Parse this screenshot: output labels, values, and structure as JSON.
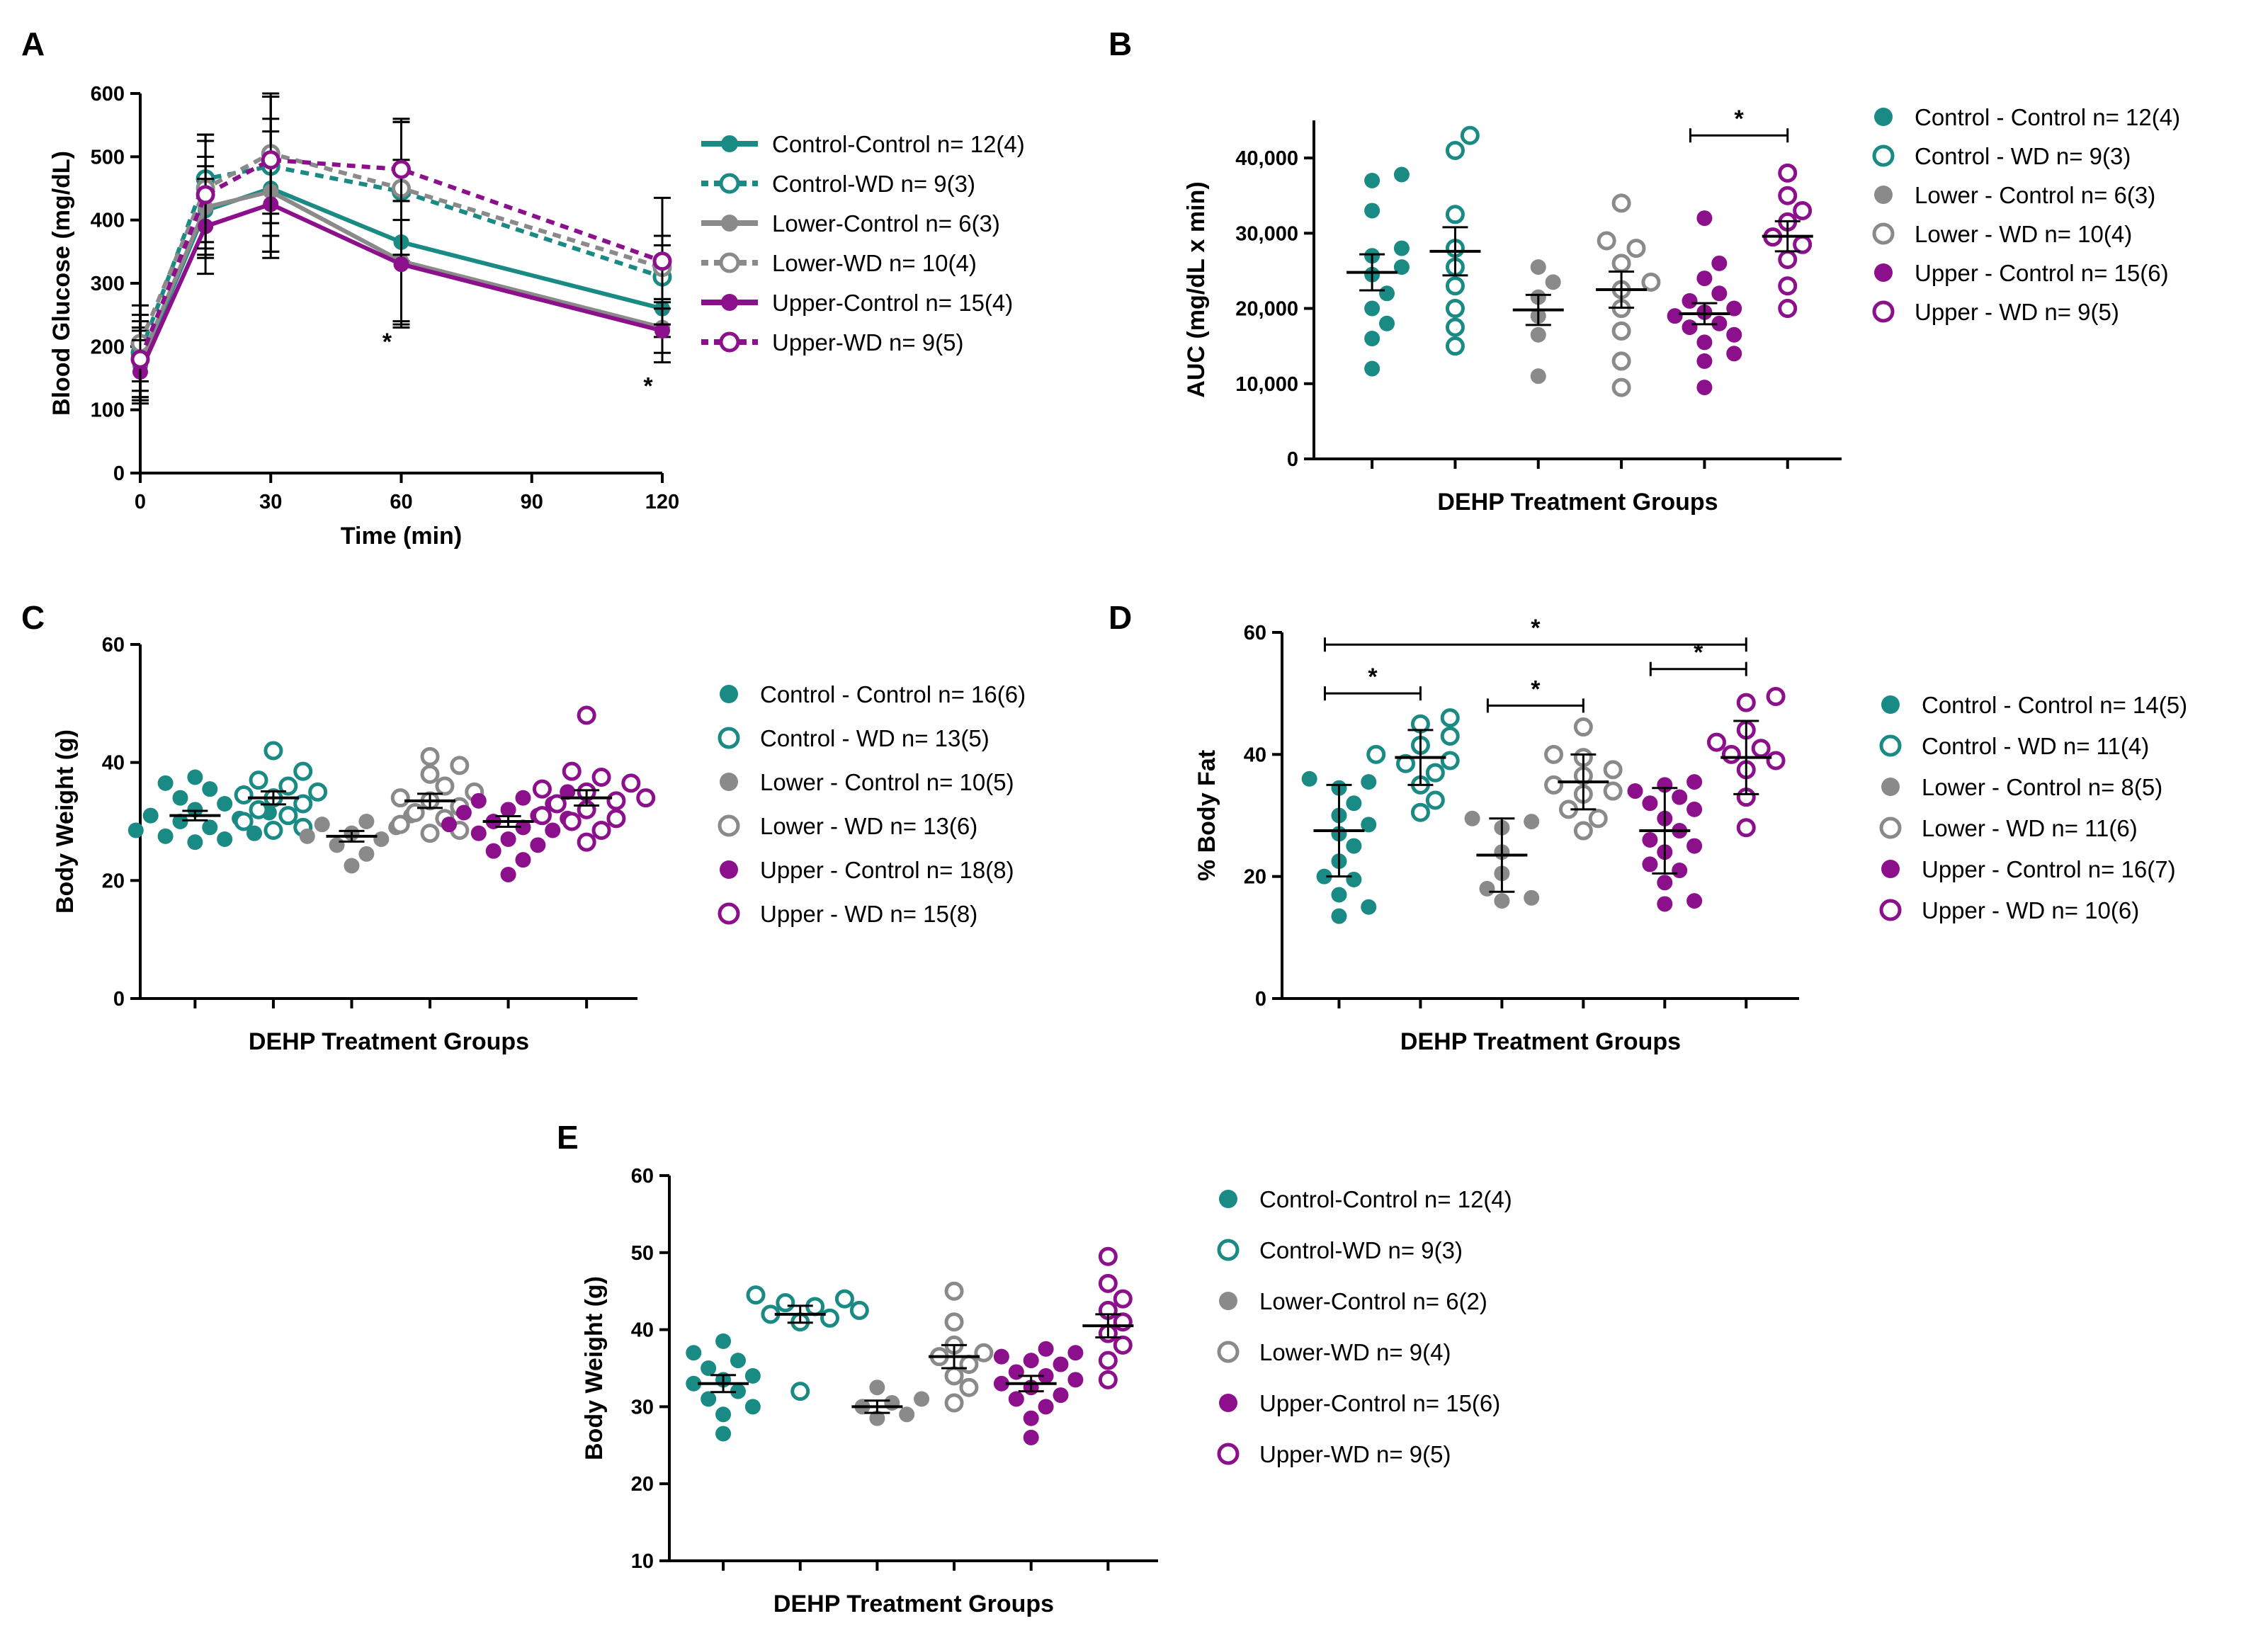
{
  "colors": {
    "control": "#1a8a84",
    "lower": "#8a8a8a",
    "upper": "#8c0f8c",
    "axis": "#000000"
  },
  "chart_data": [
    {
      "id": "A",
      "type": "line",
      "panel_label": "A",
      "xlabel": "Time (min)",
      "ylabel": "Blood Glucose (mg/dL)",
      "xlim": [
        0,
        120
      ],
      "ylim": [
        0,
        600
      ],
      "xticks": [
        0,
        30,
        60,
        90,
        120
      ],
      "yticks": [
        0,
        100,
        200,
        300,
        400,
        500,
        600
      ],
      "x": [
        0,
        15,
        30,
        60,
        120
      ],
      "series": [
        {
          "name": "Control-Control",
          "legend": "Control-Control n= 12(4)",
          "color": "control",
          "filled": true,
          "dashed": false,
          "values": [
            170,
            415,
            450,
            365,
            260
          ],
          "errors": [
            55,
            70,
            110,
            130,
            45
          ]
        },
        {
          "name": "Control-WD",
          "legend": "Control-WD n= 9(3)",
          "color": "control",
          "filled": false,
          "dashed": true,
          "values": [
            190,
            465,
            485,
            445,
            310
          ],
          "errors": [
            60,
            70,
            110,
            110,
            50
          ]
        },
        {
          "name": "Lower-Control",
          "legend": "Lower-Control n= 6(3)",
          "color": "lower",
          "filled": true,
          "dashed": false,
          "values": [
            175,
            420,
            445,
            335,
            230
          ],
          "errors": [
            55,
            80,
            95,
            95,
            40
          ]
        },
        {
          "name": "Lower-WD",
          "legend": "Lower-WD n= 10(4)",
          "color": "lower",
          "filled": false,
          "dashed": true,
          "values": [
            205,
            450,
            505,
            450,
            325
          ],
          "errors": [
            60,
            85,
            95,
            105,
            50
          ]
        },
        {
          "name": "Upper-Control",
          "legend": "Upper-Control n= 15(4)",
          "color": "upper",
          "filled": true,
          "dashed": false,
          "values": [
            160,
            390,
            425,
            330,
            225
          ],
          "errors": [
            50,
            75,
            75,
            100,
            50
          ]
        },
        {
          "name": "Upper-WD",
          "legend": "Upper-WD n= 9(5)",
          "color": "upper",
          "filled": false,
          "dashed": true,
          "values": [
            180,
            440,
            495,
            480,
            335
          ],
          "errors": [
            60,
            85,
            100,
            80,
            100
          ]
        }
      ],
      "annotations": [
        {
          "text": "*",
          "x": 60,
          "y": 195
        },
        {
          "text": "*",
          "x": 120,
          "y": 125
        }
      ]
    },
    {
      "id": "B",
      "type": "scatter",
      "panel_label": "B",
      "xlabel": "DEHP Treatment Groups",
      "ylabel": "AUC (mg/dL x min)",
      "ylim": [
        0,
        45000
      ],
      "yticks": [
        0,
        10000,
        20000,
        30000,
        40000
      ],
      "ytick_labels": [
        "0",
        "10,000",
        "20,000",
        "30,000",
        "40,000"
      ],
      "groups": [
        {
          "name": "Control - Control",
          "legend": "Control - Control n= 12(4)",
          "color": "control",
          "filled": true,
          "mean": 24800,
          "sem": 2400,
          "values": [
            37000,
            37800,
            33000,
            28000,
            27000,
            25500,
            24500,
            22000,
            20000,
            18000,
            16000,
            12000
          ]
        },
        {
          "name": "Control - WD",
          "legend": "Control - WD n= 9(3)",
          "color": "control",
          "filled": false,
          "mean": 27600,
          "sem": 3200,
          "values": [
            43000,
            41000,
            32500,
            28000,
            25500,
            23000,
            20000,
            15000,
            17500
          ]
        },
        {
          "name": "Lower - Control",
          "legend": "Lower - Control n= 6(3)",
          "color": "lower",
          "filled": true,
          "mean": 19800,
          "sem": 2000,
          "values": [
            25500,
            23500,
            21500,
            19000,
            16500,
            11000
          ]
        },
        {
          "name": "Lower - WD",
          "legend": "Lower - WD n= 10(4)",
          "color": "lower",
          "filled": false,
          "mean": 22500,
          "sem": 2400,
          "values": [
            34000,
            29000,
            28000,
            26000,
            23500,
            22500,
            20000,
            17000,
            13000,
            9500
          ]
        },
        {
          "name": "Upper - Control",
          "legend": "Upper - Control n= 15(6)",
          "color": "upper",
          "filled": true,
          "mean": 19300,
          "sem": 1400,
          "values": [
            32000,
            26000,
            24000,
            22000,
            21000,
            20000,
            19500,
            19000,
            18000,
            17500,
            16500,
            15500,
            14000,
            13000,
            9500
          ]
        },
        {
          "name": "Upper - WD",
          "legend": "Upper - WD n= 9(5)",
          "color": "upper",
          "filled": false,
          "mean": 29600,
          "sem": 2000,
          "values": [
            38000,
            35000,
            33000,
            31500,
            29500,
            28500,
            26500,
            23000,
            20000
          ]
        }
      ],
      "comparisons": [
        {
          "from": 4,
          "to": 5,
          "y": 43000,
          "text": "*"
        }
      ]
    },
    {
      "id": "C",
      "type": "scatter",
      "panel_label": "C",
      "xlabel": "DEHP Treatment Groups",
      "ylabel": "Body Weight (g)",
      "ylim": [
        0,
        60
      ],
      "yticks": [
        0,
        20,
        40,
        60
      ],
      "ytick_labels": [
        "0",
        "20",
        "40",
        "60"
      ],
      "groups": [
        {
          "name": "Control - Control",
          "legend": "Control - Control n= 16(6)",
          "color": "control",
          "filled": true,
          "mean": 31,
          "sem": 0.8,
          "values": [
            37.5,
            36.5,
            35.5,
            34,
            33,
            32,
            31.5,
            31,
            30.5,
            30,
            29,
            28.5,
            28,
            27.5,
            27,
            26.5
          ]
        },
        {
          "name": "Control - WD",
          "legend": "Control - WD n= 13(5)",
          "color": "control",
          "filled": false,
          "mean": 34,
          "sem": 1.1,
          "values": [
            42,
            38.5,
            37,
            36,
            35,
            34.5,
            34,
            33,
            32,
            31,
            30,
            29,
            28.5
          ]
        },
        {
          "name": "Lower - Control",
          "legend": "Lower - Control n= 10(5)",
          "color": "lower",
          "filled": true,
          "mean": 27.5,
          "sem": 0.9,
          "values": [
            31,
            30,
            29.5,
            29,
            28,
            27.5,
            27,
            26,
            24.5,
            22.5
          ]
        },
        {
          "name": "Lower - WD",
          "legend": "Lower - WD n= 13(6)",
          "color": "lower",
          "filled": false,
          "mean": 33.5,
          "sem": 1.2,
          "values": [
            41,
            39.5,
            38,
            36,
            35,
            34,
            33.5,
            32.5,
            31.5,
            30.5,
            29.5,
            28.5,
            28
          ]
        },
        {
          "name": "Upper - Control",
          "legend": "Upper - Control n= 18(8)",
          "color": "upper",
          "filled": true,
          "mean": 30,
          "sem": 0.9,
          "values": [
            35,
            34,
            33.5,
            33,
            32,
            31.5,
            31,
            30.5,
            30,
            29.5,
            29,
            28.5,
            28,
            27,
            26,
            25,
            23.5,
            21
          ]
        },
        {
          "name": "Upper - WD",
          "legend": "Upper - WD n= 15(8)",
          "color": "upper",
          "filled": false,
          "mean": 34,
          "sem": 1.3,
          "values": [
            48,
            38.5,
            37.5,
            36.5,
            35.5,
            35,
            34,
            33.5,
            33,
            32,
            31,
            30.5,
            30,
            28.5,
            26.5
          ]
        }
      ]
    },
    {
      "id": "D",
      "type": "scatter",
      "panel_label": "D",
      "xlabel": "DEHP Treatment Groups",
      "ylabel": "% Body Fat",
      "ylim": [
        0,
        60
      ],
      "yticks": [
        0,
        20,
        40,
        60
      ],
      "ytick_labels": [
        "0",
        "20",
        "40",
        "60"
      ],
      "groups": [
        {
          "name": "Control - Control",
          "legend": "Control - Control n= 14(5)",
          "color": "control",
          "filled": true,
          "mean": 27.5,
          "sem": 7.5,
          "values": [
            36,
            35.5,
            34.5,
            32,
            30,
            28.5,
            27,
            25,
            22.5,
            20,
            19.5,
            17,
            15,
            13.5
          ]
        },
        {
          "name": "Control - WD",
          "legend": "Control - WD  n= 11(4)",
          "color": "control",
          "filled": false,
          "mean": 39.5,
          "sem": 4.5,
          "values": [
            46,
            45,
            43,
            41.5,
            40,
            39,
            38.5,
            37,
            35,
            32.5,
            30.5
          ]
        },
        {
          "name": "Lower - Control",
          "legend": "Lower - Control n= 8(5)",
          "color": "lower",
          "filled": true,
          "mean": 23.5,
          "sem": 6,
          "values": [
            29.5,
            29,
            28,
            24,
            20.5,
            18,
            16.5,
            16
          ]
        },
        {
          "name": "Lower - WD",
          "legend": "Lower - WD n= 11(6)",
          "color": "lower",
          "filled": false,
          "mean": 35.5,
          "sem": 4.5,
          "values": [
            44.5,
            40,
            39.5,
            37.5,
            36.5,
            35,
            34,
            33.5,
            31,
            29.5,
            27.5
          ]
        },
        {
          "name": "Upper - Control",
          "legend": "Upper - Control n= 16(7)",
          "color": "upper",
          "filled": true,
          "mean": 27.5,
          "sem": 7,
          "values": [
            35.5,
            35,
            34,
            33,
            32,
            31,
            29.5,
            27.5,
            26,
            25,
            24,
            22,
            21,
            19,
            16,
            15.5
          ]
        },
        {
          "name": "Upper - WD",
          "legend": "Upper - WD n= 10(6)",
          "color": "upper",
          "filled": false,
          "mean": 39.5,
          "sem": 6,
          "values": [
            49.5,
            48.5,
            44,
            42,
            41,
            40,
            39,
            37.5,
            33,
            28
          ]
        }
      ],
      "comparisons": [
        {
          "from": 0,
          "to": 5,
          "y": 58,
          "text": "*"
        },
        {
          "from": 0,
          "to": 1,
          "y": 50,
          "text": "*"
        },
        {
          "from": 2,
          "to": 3,
          "y": 48,
          "text": "*"
        },
        {
          "from": 4,
          "to": 5,
          "y": 54,
          "text": "*"
        }
      ]
    },
    {
      "id": "E",
      "type": "scatter",
      "panel_label": "E",
      "xlabel": "DEHP Treatment Groups",
      "ylabel": "Body Weight (g)",
      "ylim": [
        10,
        60
      ],
      "yticks": [
        10,
        20,
        30,
        40,
        50,
        60
      ],
      "ytick_labels": [
        "10",
        "20",
        "30",
        "40",
        "50",
        "60"
      ],
      "groups": [
        {
          "name": "Control-Control",
          "legend": "Control-Control n= 12(4)",
          "color": "control",
          "filled": true,
          "mean": 33,
          "sem": 1.1,
          "values": [
            38.5,
            37,
            36,
            35,
            34,
            33.5,
            33,
            32,
            31,
            30,
            29,
            26.5
          ]
        },
        {
          "name": "Control-WD",
          "legend": "Control-WD n= 9(3)",
          "color": "control",
          "filled": false,
          "mean": 42,
          "sem": 1.1,
          "values": [
            44.5,
            44,
            43.5,
            43,
            42.5,
            42,
            41.5,
            41,
            32
          ]
        },
        {
          "name": "Lower-Control",
          "legend": "Lower-Control n= 6(2)",
          "color": "lower",
          "filled": true,
          "mean": 30,
          "sem": 0.8,
          "values": [
            32.5,
            31,
            30.5,
            30,
            29,
            28.5
          ]
        },
        {
          "name": "Lower-WD",
          "legend": "Lower-WD n= 9(4)",
          "color": "lower",
          "filled": false,
          "mean": 36.5,
          "sem": 1.5,
          "values": [
            45,
            41,
            38,
            37,
            36.5,
            35.5,
            34,
            32.5,
            30.5
          ]
        },
        {
          "name": "Upper-Control",
          "legend": "Upper-Control n= 15(6)",
          "color": "upper",
          "filled": true,
          "mean": 33,
          "sem": 1,
          "values": [
            37.5,
            37,
            36.5,
            36,
            35.5,
            34.5,
            34,
            33.5,
            33,
            32.5,
            31.5,
            31,
            30,
            28.5,
            26
          ]
        },
        {
          "name": "Upper-WD",
          "legend": "Upper-WD n= 9(5)",
          "color": "upper",
          "filled": false,
          "mean": 40.5,
          "sem": 1.5,
          "values": [
            49.5,
            46,
            44,
            42.5,
            41,
            39.5,
            38,
            36,
            33.5
          ]
        }
      ]
    }
  ]
}
